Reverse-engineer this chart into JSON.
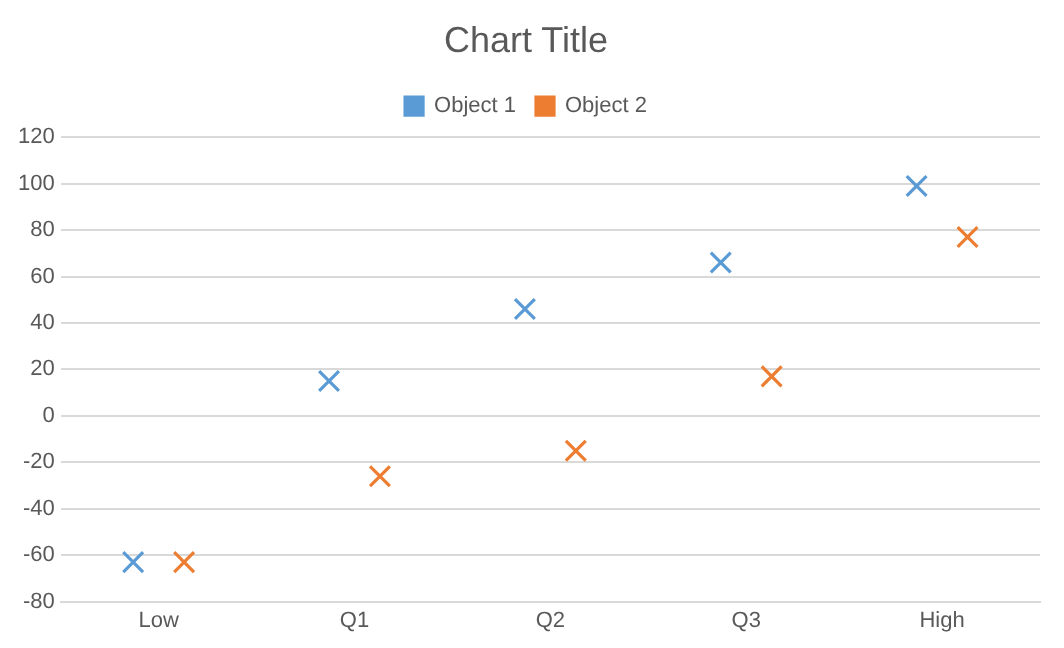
{
  "chart_data": {
    "type": "scatter",
    "title": "Chart Title",
    "categories": [
      "Low",
      "Q1",
      "Q2",
      "Q3",
      "High"
    ],
    "series": [
      {
        "name": "Object 1",
        "color": "#5b9bd5",
        "values": [
          -63,
          15,
          46,
          66,
          99
        ]
      },
      {
        "name": "Object 2",
        "color": "#ed7d31",
        "values": [
          -63,
          -26,
          -15,
          17,
          77
        ]
      }
    ],
    "ylim": [
      -80,
      120
    ],
    "yticks": [
      -80,
      -60,
      -40,
      -20,
      0,
      20,
      40,
      60,
      80,
      100,
      120
    ],
    "grid": "y",
    "legend": "top",
    "marker": "cross"
  }
}
